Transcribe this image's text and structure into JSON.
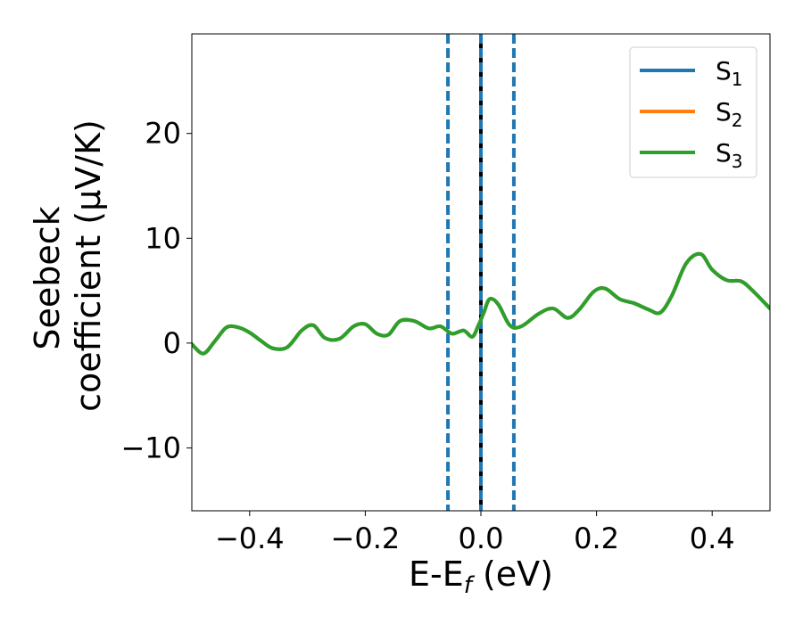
{
  "chart_data": {
    "type": "line",
    "xlabel": {
      "main": "E-E",
      "sub": "f",
      "tail": " (eV)"
    },
    "ylabel": {
      "line1": "Seebeck",
      "line2": "coefficient  (μV/K)"
    },
    "xlim": [
      -0.5,
      0.5
    ],
    "ylim": [
      -16,
      29.5
    ],
    "xticks": [
      -0.4,
      -0.2,
      0.0,
      0.2,
      0.4
    ],
    "xtick_labels": [
      "−0.4",
      "−0.2",
      "0.0",
      "0.2",
      "0.4"
    ],
    "yticks": [
      -10,
      0,
      10,
      20
    ],
    "ytick_labels": [
      "−10",
      "0",
      "10",
      "20"
    ],
    "legend_position": "top-right",
    "grid": false,
    "vlines": [
      {
        "x": -0.057,
        "style": "dashed",
        "color": "#1f77b4"
      },
      {
        "x": 0.0,
        "style": "solid",
        "color": "#000000"
      },
      {
        "x": 0.0,
        "style": "dashed",
        "color": "#1f77b4"
      },
      {
        "x": 0.057,
        "style": "dashed",
        "color": "#1f77b4"
      }
    ],
    "x": [
      -0.5,
      -0.48,
      -0.46,
      -0.44,
      -0.42,
      -0.4,
      -0.38,
      -0.36,
      -0.335,
      -0.31,
      -0.29,
      -0.27,
      -0.245,
      -0.22,
      -0.2,
      -0.18,
      -0.16,
      -0.14,
      -0.115,
      -0.09,
      -0.07,
      -0.05,
      -0.03,
      -0.015,
      -0.005,
      0.005,
      0.015,
      0.03,
      0.05,
      0.07,
      0.1,
      0.125,
      0.15,
      0.17,
      0.195,
      0.215,
      0.24,
      0.265,
      0.29,
      0.31,
      0.33,
      0.355,
      0.38,
      0.4,
      0.425,
      0.45,
      0.47,
      0.5
    ],
    "series": [
      {
        "name": "S",
        "sub": "1",
        "color": "#1f77b4",
        "values": [
          -0.1,
          -1.0,
          0.2,
          1.5,
          1.5,
          1.0,
          0.2,
          -0.5,
          -0.4,
          1.2,
          1.7,
          0.5,
          0.4,
          1.6,
          1.8,
          0.9,
          0.8,
          2.1,
          2.1,
          1.4,
          1.6,
          0.9,
          1.2,
          0.6,
          1.6,
          2.9,
          4.2,
          3.7,
          1.7,
          1.6,
          2.8,
          3.3,
          2.4,
          3.2,
          4.9,
          5.2,
          4.2,
          3.8,
          3.2,
          2.9,
          4.5,
          7.6,
          8.5,
          7.0,
          6.0,
          5.9,
          5.0,
          3.3
        ]
      },
      {
        "name": "S",
        "sub": "2",
        "color": "#ff7f0e",
        "values": [
          -0.1,
          -1.0,
          0.2,
          1.5,
          1.5,
          1.0,
          0.2,
          -0.5,
          -0.4,
          1.2,
          1.7,
          0.5,
          0.4,
          1.6,
          1.8,
          0.9,
          0.8,
          2.1,
          2.1,
          1.4,
          1.6,
          0.9,
          1.2,
          0.6,
          1.6,
          2.9,
          4.2,
          3.7,
          1.7,
          1.6,
          2.8,
          3.3,
          2.4,
          3.2,
          4.9,
          5.2,
          4.2,
          3.8,
          3.2,
          2.9,
          4.5,
          7.6,
          8.5,
          7.0,
          6.0,
          5.9,
          5.0,
          3.3
        ]
      },
      {
        "name": "S",
        "sub": "3",
        "color": "#2ca02c",
        "values": [
          -0.1,
          -1.0,
          0.2,
          1.5,
          1.5,
          1.0,
          0.2,
          -0.5,
          -0.4,
          1.2,
          1.7,
          0.5,
          0.4,
          1.6,
          1.8,
          0.9,
          0.8,
          2.1,
          2.1,
          1.4,
          1.6,
          0.9,
          1.2,
          0.6,
          1.6,
          2.9,
          4.2,
          3.7,
          1.7,
          1.6,
          2.8,
          3.3,
          2.4,
          3.2,
          4.9,
          5.2,
          4.2,
          3.8,
          3.2,
          2.9,
          4.5,
          7.6,
          8.5,
          7.0,
          6.0,
          5.9,
          5.0,
          3.3
        ]
      }
    ]
  }
}
